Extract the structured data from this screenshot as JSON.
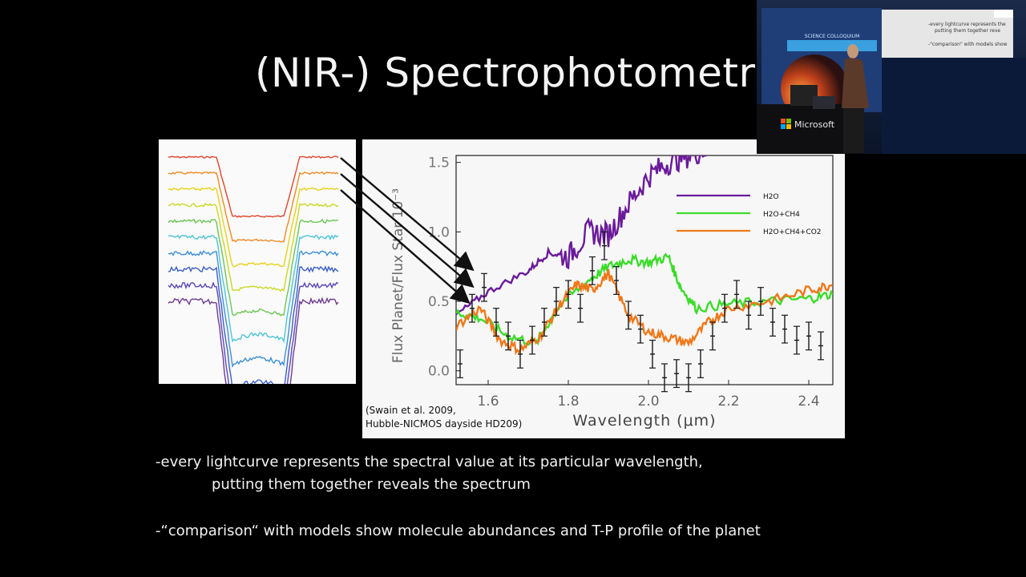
{
  "slide": {
    "title": "(NIR-) Spectrophotometry",
    "bullet1_line1": "-every lightcurve represents the spectral value at its particular wavelength,",
    "bullet1_line2": "putting them together reveals the spectrum",
    "bullet2": "-“comparison“ with models show molecule abundances and T-P profile of the planet"
  },
  "figure": {
    "citation_line1": "(Swain et al. 2009,",
    "citation_line2": "Hubble-NICMOS dayside HD209)"
  },
  "lightcurves": {
    "colors": [
      "#e0442c",
      "#ee8a22",
      "#e9d11a",
      "#c9d826",
      "#6bc654",
      "#4dc3d6",
      "#3c8fd4",
      "#3b5fc4",
      "#5a48b8",
      "#6f3a90"
    ],
    "depth": 0.62
  },
  "chart_data": {
    "type": "line",
    "xlabel": "Wavelength (μm)",
    "ylabel": "Flux Planet/Flux Star 10⁻³",
    "xlim": [
      1.52,
      2.46
    ],
    "ylim": [
      -0.1,
      1.55
    ],
    "xticks": [
      "1.6",
      "1.8",
      "2.0",
      "2.2",
      "2.4"
    ],
    "yticks": [
      "0.0",
      "0.5",
      "1.0",
      "1.5"
    ],
    "legend_position": "top-right",
    "series": [
      {
        "name": "H2O",
        "color": "#6a1a9a",
        "x": [
          1.52,
          1.6,
          1.7,
          1.75,
          1.8,
          1.85,
          1.9,
          1.95,
          2.0,
          2.05,
          2.1,
          2.15
        ],
        "y": [
          0.4,
          0.57,
          0.72,
          0.85,
          0.82,
          1.0,
          0.98,
          1.2,
          1.4,
          1.5,
          1.55,
          1.6
        ]
      },
      {
        "name": "H2O+CH4",
        "color": "#3bdc2a",
        "x": [
          1.52,
          1.58,
          1.65,
          1.72,
          1.78,
          1.85,
          1.9,
          1.95,
          2.0,
          2.05,
          2.08,
          2.12,
          2.2,
          2.3,
          2.4,
          2.46
        ],
        "y": [
          0.42,
          0.38,
          0.25,
          0.2,
          0.48,
          0.65,
          0.75,
          0.8,
          0.78,
          0.82,
          0.6,
          0.45,
          0.48,
          0.5,
          0.52,
          0.55
        ]
      },
      {
        "name": "H2O+CH4+CO2",
        "color": "#f07818",
        "x": [
          1.52,
          1.58,
          1.63,
          1.68,
          1.73,
          1.78,
          1.82,
          1.86,
          1.9,
          1.95,
          2.0,
          2.05,
          2.1,
          2.15,
          2.2,
          2.3,
          2.4,
          2.46
        ],
        "y": [
          0.32,
          0.45,
          0.22,
          0.15,
          0.25,
          0.48,
          0.62,
          0.58,
          0.7,
          0.4,
          0.28,
          0.24,
          0.2,
          0.35,
          0.45,
          0.5,
          0.58,
          0.62
        ]
      },
      {
        "name": "data",
        "color": "#1a1a1a",
        "x": [
          1.53,
          1.56,
          1.59,
          1.62,
          1.65,
          1.68,
          1.71,
          1.74,
          1.77,
          1.8,
          1.83,
          1.86,
          1.89,
          1.92,
          1.95,
          1.98,
          2.01,
          2.04,
          2.07,
          2.1,
          2.13,
          2.16,
          2.19,
          2.22,
          2.25,
          2.28,
          2.31,
          2.34,
          2.37,
          2.4,
          2.43
        ],
        "y": [
          0.05,
          0.45,
          0.6,
          0.35,
          0.25,
          0.12,
          0.22,
          0.35,
          0.5,
          0.55,
          0.45,
          0.72,
          0.9,
          0.65,
          0.4,
          0.3,
          0.12,
          -0.05,
          -0.02,
          -0.05,
          0.05,
          0.25,
          0.45,
          0.55,
          0.4,
          0.5,
          0.35,
          0.3,
          0.22,
          0.25,
          0.18
        ],
        "err": 0.1
      }
    ]
  },
  "inset": {
    "screen_line1": "-every lightcurve represents the",
    "screen_line2": "putting them together reve",
    "screen_line3": "-\"comparison\" with models show",
    "sponsor": "Microsoft",
    "banner": "SCIENCE COLLOQUIUM"
  }
}
